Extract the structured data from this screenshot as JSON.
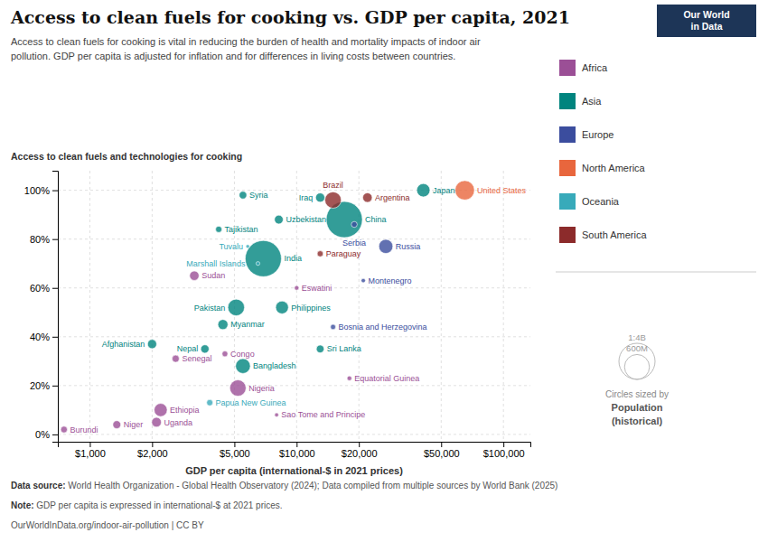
{
  "chart_data": {
    "type": "scatter",
    "title": "Access to clean fuels for cooking vs. GDP per capita, 2021",
    "subtitle": "Access to clean fuels for cooking is vital in reducing the burden of health and mortality impacts of indoor air\npollution. GDP per capita is adjusted for inflation and for differences in living costs between countries.",
    "x_label": "GDP per capita (international-$ in 2021 prices)",
    "y_label": "Access to clean fuels and technologies for cooking",
    "log": "x",
    "xlim": [
      700,
      135000
    ],
    "xticks": [
      {
        "value": 1000,
        "label": "$1,000"
      },
      {
        "value": 2000,
        "label": "$2,000"
      },
      {
        "value": 5000,
        "label": "$5,000"
      },
      {
        "value": 10000,
        "label": "$10,000"
      },
      {
        "value": 20000,
        "label": "$20,000"
      },
      {
        "value": 50000,
        "label": "$50,000"
      },
      {
        "value": 100000,
        "label": "$100,000"
      }
    ],
    "ylim": [
      -3,
      108
    ],
    "yticks": [
      {
        "value": 0,
        "label": "0%"
      },
      {
        "value": 20,
        "label": "20%"
      },
      {
        "value": 40,
        "label": "40%"
      },
      {
        "value": 60,
        "label": "60%"
      },
      {
        "value": 80,
        "label": "80%"
      },
      {
        "value": 100,
        "label": "100%"
      }
    ],
    "grid": true,
    "legend": "right",
    "series": [
      {
        "name": "Africa",
        "color": "#9B4F96",
        "labels": [
          "Burundi",
          "Niger",
          "Ethiopia",
          "Uganda",
          "Sudan",
          "Senegal",
          "Nigeria",
          "Congo",
          "Eswatini",
          "Equatorial Guinea",
          "Sao Tome and Principe"
        ],
        "x": [
          750,
          1350,
          2200,
          2100,
          3200,
          2600,
          5200,
          4500,
          10000,
          18000,
          8000
        ],
        "values": [
          2,
          4,
          10,
          5,
          65,
          31,
          19,
          33,
          60,
          23,
          8
        ],
        "sizes": [
          12,
          25,
          120,
          48,
          45,
          17,
          213,
          6,
          1.2,
          1.5,
          0.22
        ]
      },
      {
        "name": "Asia",
        "color": "#00847E",
        "labels": [
          "Afghanistan",
          "Nepal",
          "Myanmar",
          "Bangladesh",
          "Pakistan",
          "Philippines",
          "Sri Lanka",
          "India",
          "China",
          "Tajikistan",
          "Uzbekistan",
          "Iraq",
          "Syria",
          "Japan"
        ],
        "x": [
          2000,
          3600,
          4400,
          5500,
          5100,
          8500,
          13000,
          6900,
          17000,
          4200,
          8200,
          13000,
          5500,
          41000
        ],
        "values": [
          37,
          35,
          45,
          28,
          52,
          52,
          35,
          72,
          88,
          84,
          88,
          97,
          98,
          100
        ],
        "sizes": [
          40,
          29,
          55,
          166,
          225,
          111,
          22,
          1400,
          1400,
          9.5,
          35,
          41,
          21,
          125
        ]
      },
      {
        "name": "Europe",
        "color": "#3B4D9E",
        "labels": [
          "Russia",
          "Bosnia and Herzegovina",
          "Montenegro",
          "Serbia"
        ],
        "x": [
          27000,
          15000,
          21000,
          19000
        ],
        "values": [
          77,
          44,
          63,
          86
        ],
        "sizes": [
          145,
          3.3,
          0.6,
          7
        ]
      },
      {
        "name": "North America",
        "color": "#E8663D",
        "labels": [
          "United States"
        ],
        "x": [
          65000
        ],
        "values": [
          100
        ],
        "sizes": [
          330
        ]
      },
      {
        "name": "Oceania",
        "color": "#38AABA",
        "labels": [
          "Papua New Guinea",
          "Tuvalu",
          "Marshall Islands"
        ],
        "x": [
          3800,
          5800,
          6500
        ],
        "values": [
          13,
          77,
          70
        ],
        "sizes": [
          9,
          0.012,
          0.042
        ]
      },
      {
        "name": "South America",
        "color": "#8C2B2B",
        "labels": [
          "Brazil",
          "Argentina",
          "Paraguay"
        ],
        "x": [
          15000,
          22000,
          13000
        ],
        "values": [
          96,
          97,
          74
        ],
        "sizes": [
          215,
          45,
          7.4
        ]
      }
    ],
    "size_legend": {
      "title": "Circles sized by",
      "name": "Population",
      "note": "(historical)",
      "ticks": [
        {
          "value": 1400,
          "label": "1:4B"
        },
        {
          "value": 600,
          "label": "600M"
        }
      ]
    },
    "badge": {
      "lines": [
        "Our World",
        "in Data"
      ],
      "color": "#1d3557"
    },
    "source_label": "Data source:",
    "source": " World Health Organization - Global Health Observatory (2024); Data compiled from multiple sources by World Bank (2025)",
    "note_label": "Note:",
    "note": " GDP per capita is expressed in international-$ at 2021 prices.",
    "url": "OurWorldInData.org/indoor-air-pollution | CC BY"
  }
}
